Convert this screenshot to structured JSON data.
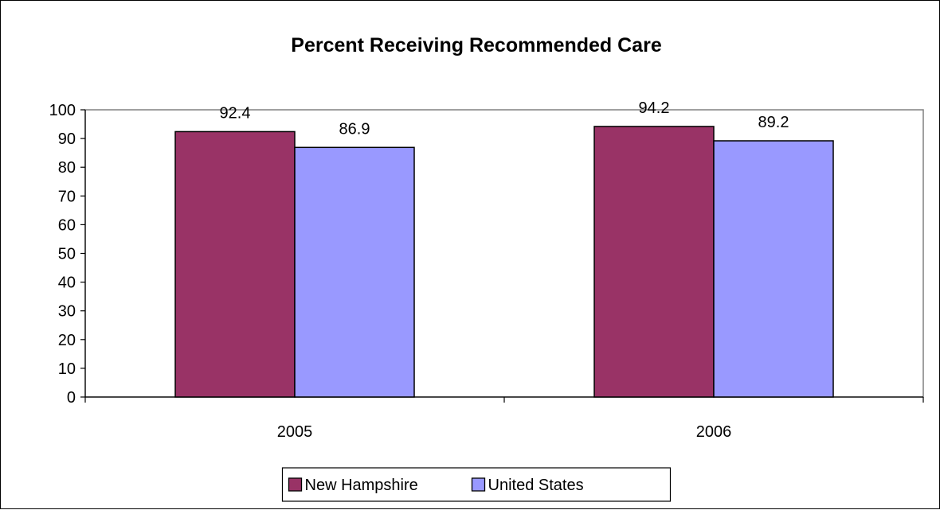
{
  "chart_data": {
    "type": "bar",
    "title": "Percent Receiving Recommended Care",
    "xlabel": "",
    "ylabel": "",
    "categories": [
      "2005",
      "2006"
    ],
    "series": [
      {
        "name": "New Hampshire",
        "values": [
          92.4,
          94.2
        ],
        "color": "#993366"
      },
      {
        "name": "United States",
        "values": [
          86.9,
          89.2
        ],
        "color": "#9999FF"
      }
    ],
    "ylim": [
      0,
      100
    ],
    "yticks": [
      "0",
      "10",
      "20",
      "30",
      "40",
      "50",
      "60",
      "70",
      "80",
      "90",
      "100"
    ],
    "data_labels": [
      [
        "92.4",
        "94.2"
      ],
      [
        "86.9",
        "89.2"
      ]
    ],
    "grid": false,
    "legend_position": "bottom",
    "plot_background": "#ffffff",
    "plot_border_color": "#808080"
  }
}
